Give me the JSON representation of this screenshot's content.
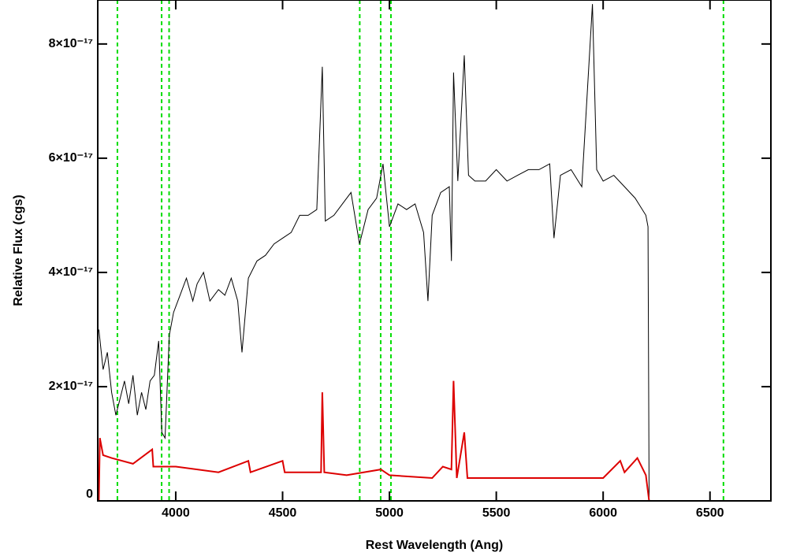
{
  "chart_data": {
    "type": "line",
    "x_label": "Rest Wavelength (Ang)",
    "y_label": "Relative Flux (cgs)",
    "xlim": [
      3635,
      6785
    ],
    "ylim": [
      0,
      8.77e-17
    ],
    "xticks": [
      4000,
      4500,
      5000,
      5500,
      6000,
      6500
    ],
    "yticks": [
      0,
      {
        "value": 2e-17,
        "label": "2×10⁻¹⁷"
      },
      {
        "value": 4e-17,
        "label": "4×10⁻¹⁷"
      },
      {
        "value": 6e-17,
        "label": "6×10⁻¹⁷"
      },
      {
        "value": 8e-17,
        "label": "8×10⁻¹⁷"
      }
    ],
    "reference_lines": {
      "x": [
        3727,
        3934,
        3969,
        4861,
        4959,
        5007,
        6563
      ],
      "color": "#00dd00"
    },
    "series": [
      {
        "color": "#000000",
        "x": [
          3640,
          3660,
          3680,
          3700,
          3720,
          3740,
          3760,
          3780,
          3800,
          3820,
          3840,
          3860,
          3880,
          3900,
          3920,
          3935,
          3950,
          3970,
          3990,
          4020,
          4050,
          4080,
          4100,
          4130,
          4160,
          4200,
          4230,
          4260,
          4290,
          4310,
          4340,
          4380,
          4420,
          4460,
          4500,
          4540,
          4580,
          4620,
          4660,
          4686,
          4700,
          4740,
          4780,
          4820,
          4860,
          4900,
          4940,
          4970,
          5000,
          5040,
          5080,
          5120,
          5160,
          5180,
          5200,
          5240,
          5280,
          5290,
          5300,
          5320,
          5350,
          5370,
          5400,
          5450,
          5500,
          5550,
          5600,
          5650,
          5700,
          5750,
          5770,
          5800,
          5850,
          5900,
          5950,
          5970,
          6000,
          6050,
          6100,
          6150,
          6200,
          6210,
          6215
        ],
        "values": [
          3e-17,
          2.3e-17,
          2.6e-17,
          1.9e-17,
          1.5e-17,
          1.8e-17,
          2.1e-17,
          1.7e-17,
          2.2e-17,
          1.5e-17,
          1.9e-17,
          1.6e-17,
          2.1e-17,
          2.2e-17,
          2.8e-17,
          1.2e-17,
          1.1e-17,
          2.9e-17,
          3.3e-17,
          3.6e-17,
          3.9e-17,
          3.5e-17,
          3.8e-17,
          4e-17,
          3.5e-17,
          3.7e-17,
          3.6e-17,
          3.9e-17,
          3.5e-17,
          2.6e-17,
          3.9e-17,
          4.2e-17,
          4.3e-17,
          4.5e-17,
          4.6e-17,
          4.7e-17,
          5e-17,
          5e-17,
          5.1e-17,
          7.6e-17,
          4.9e-17,
          5e-17,
          5.2e-17,
          5.4e-17,
          4.5e-17,
          5.1e-17,
          5.3e-17,
          5.9e-17,
          4.8e-17,
          5.2e-17,
          5.1e-17,
          5.2e-17,
          4.7e-17,
          3.5e-17,
          5e-17,
          5.4e-17,
          5.5e-17,
          4.2e-17,
          7.5e-17,
          5.6e-17,
          7.8e-17,
          5.7e-17,
          5.6e-17,
          5.6e-17,
          5.8e-17,
          5.6e-17,
          5.7e-17,
          5.8e-17,
          5.8e-17,
          5.9e-17,
          4.6e-17,
          5.7e-17,
          5.8e-17,
          5.5e-17,
          8.7e-17,
          5.8e-17,
          5.6e-17,
          5.7e-17,
          5.5e-17,
          5.3e-17,
          5e-17,
          4.8e-17,
          0
        ]
      },
      {
        "color": "#dd0000",
        "x": [
          3640,
          3645,
          3660,
          3700,
          3800,
          3890,
          3895,
          4000,
          4200,
          4340,
          4350,
          4500,
          4510,
          4680,
          4686,
          4695,
          4800,
          4960,
          5000,
          5200,
          5250,
          5290,
          5300,
          5315,
          5350,
          5365,
          5600,
          5800,
          6000,
          6080,
          6100,
          6160,
          6200,
          6215,
          6785
        ],
        "values": [
          0,
          1.1e-17,
          8e-18,
          7.5e-18,
          6.5e-18,
          9e-18,
          6e-18,
          6e-18,
          5e-18,
          7e-18,
          5e-18,
          7e-18,
          5e-18,
          5e-18,
          1.9e-17,
          5e-18,
          4.5e-18,
          5.5e-18,
          4.5e-18,
          4e-18,
          6e-18,
          5.5e-18,
          2.1e-17,
          4e-18,
          1.2e-17,
          4e-18,
          4e-18,
          4e-18,
          4e-18,
          7e-18,
          5e-18,
          7.5e-18,
          4.5e-18,
          0,
          0
        ]
      }
    ]
  }
}
